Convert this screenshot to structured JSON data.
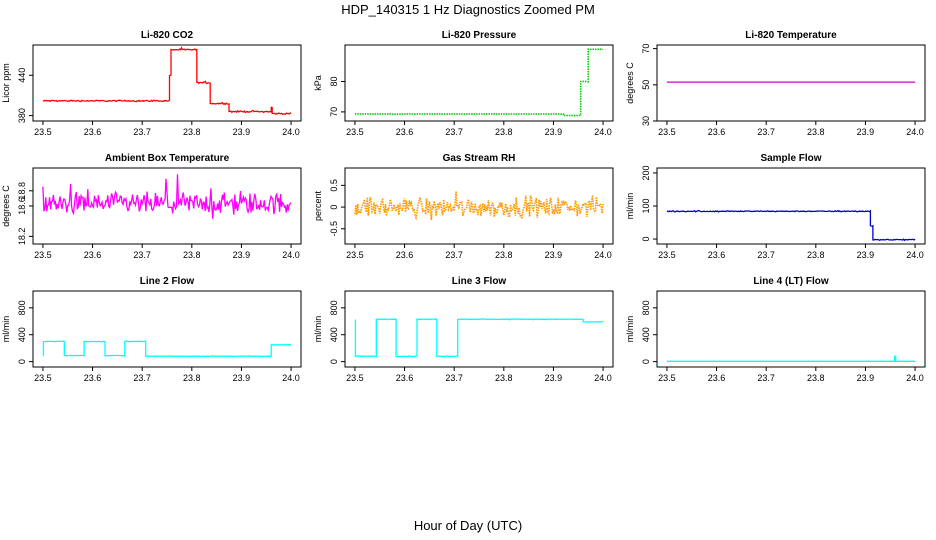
{
  "figure": {
    "title": "HDP_140315  1 Hz Diagnostics Zoomed PM",
    "xlabel": "Hour of Day (UTC)"
  },
  "chart_data": [
    {
      "type": "line",
      "title": "Li-820 CO2",
      "ylabel": "Licor ppm",
      "xlim": [
        23.48,
        24.02
      ],
      "ylim": [
        372,
        485
      ],
      "xticks": [
        "23.5",
        "23.6",
        "23.7",
        "23.8",
        "23.9",
        "24.0"
      ],
      "yticks": [
        "380",
        "440"
      ],
      "xtick_values": [
        23.5,
        23.6,
        23.7,
        23.8,
        23.9,
        24.0
      ],
      "ytick_values": [
        380,
        440
      ],
      "color": "#ff0000",
      "style": "line",
      "noise": 1.0,
      "series": [
        {
          "segments": [
            [
              23.5,
              23.755,
              402
            ],
            [
              23.755,
              23.758,
              440
            ],
            [
              23.758,
              23.81,
              478
            ],
            [
              23.81,
              23.837,
              429
            ],
            [
              23.837,
              23.875,
              398
            ],
            [
              23.875,
              23.96,
              386
            ],
            [
              23.96,
              23.962,
              392
            ],
            [
              23.962,
              24.0,
              383
            ]
          ]
        }
      ]
    },
    {
      "type": "line",
      "title": "Li-820 Pressure",
      "ylabel": "kPa",
      "xlim": [
        23.48,
        24.02
      ],
      "ylim": [
        67,
        92
      ],
      "xticks": [
        "23.5",
        "23.6",
        "23.7",
        "23.8",
        "23.9",
        "24.0"
      ],
      "yticks": [
        "70",
        "80"
      ],
      "xtick_values": [
        23.5,
        23.6,
        23.7,
        23.8,
        23.9,
        24.0
      ],
      "ytick_values": [
        70,
        80
      ],
      "color": "#00cc00",
      "style": "dotted",
      "noise": 0.05,
      "series": [
        {
          "segments": [
            [
              23.5,
              23.92,
              69.3
            ],
            [
              23.92,
              23.955,
              68.8
            ],
            [
              23.955,
              23.97,
              80
            ],
            [
              23.97,
              24.0,
              90.6
            ]
          ]
        }
      ]
    },
    {
      "type": "line",
      "title": "Li-820 Temperature",
      "ylabel": "degrees C",
      "xlim": [
        23.48,
        24.02
      ],
      "ylim": [
        30,
        72
      ],
      "xticks": [
        "23.5",
        "23.6",
        "23.7",
        "23.8",
        "23.9",
        "24.0"
      ],
      "yticks": [
        "30",
        "50",
        "70"
      ],
      "xtick_values": [
        23.5,
        23.6,
        23.7,
        23.8,
        23.9,
        24.0
      ],
      "ytick_values": [
        30,
        50,
        70
      ],
      "color": "#cc00cc",
      "style": "line",
      "noise": 0.0,
      "series": [
        {
          "segments": [
            [
              23.5,
              24.0,
              51.5
            ]
          ]
        }
      ]
    },
    {
      "type": "line",
      "title": "Ambient Box Temperature",
      "ylabel": "degrees C",
      "xlim": [
        23.48,
        24.02
      ],
      "ylim": [
        18.1,
        19.1
      ],
      "xticks": [
        "23.5",
        "23.6",
        "23.7",
        "23.8",
        "23.9",
        "24.0"
      ],
      "yticks": [
        "18.2",
        "18.6",
        "18.8"
      ],
      "xtick_values": [
        23.5,
        23.6,
        23.7,
        23.8,
        23.9,
        24.0
      ],
      "ytick_values": [
        18.2,
        18.6,
        18.8
      ],
      "color": "#ff00ff",
      "style": "line",
      "noise": 0.14,
      "series": [
        {
          "segments": [
            [
              23.5,
              24.0,
              18.63
            ]
          ]
        }
      ]
    },
    {
      "type": "line",
      "title": "Gas Stream RH",
      "ylabel": "percent",
      "xlim": [
        23.48,
        24.02
      ],
      "ylim": [
        -0.85,
        0.9
      ],
      "xticks": [
        "23.5",
        "23.6",
        "23.7",
        "23.8",
        "23.9",
        "24.0"
      ],
      "yticks": [
        "-0.5",
        "0",
        "0.5"
      ],
      "xtick_values": [
        23.5,
        23.6,
        23.7,
        23.8,
        23.9,
        24.0
      ],
      "ytick_values": [
        -0.5,
        0,
        0.5
      ],
      "color": "#ff9900",
      "style": "dotted",
      "noise": 0.22,
      "series": [
        {
          "segments": [
            [
              23.5,
              24.0,
              0.0
            ]
          ]
        }
      ]
    },
    {
      "type": "line",
      "title": "Sample Flow",
      "ylabel": "ml/min",
      "xlim": [
        23.48,
        24.02
      ],
      "ylim": [
        -15,
        215
      ],
      "xticks": [
        "23.5",
        "23.6",
        "23.7",
        "23.8",
        "23.9",
        "24.0"
      ],
      "yticks": [
        "0",
        "100",
        "200"
      ],
      "xtick_values": [
        23.5,
        23.6,
        23.7,
        23.8,
        23.9,
        24.0
      ],
      "ytick_values": [
        0,
        100,
        200
      ],
      "color": "#0000cc",
      "style": "line",
      "noise": 1.5,
      "series": [
        {
          "segments": [
            [
              23.5,
              23.91,
              84
            ],
            [
              23.91,
              23.915,
              40
            ],
            [
              23.915,
              24.0,
              -2
            ]
          ]
        }
      ]
    },
    {
      "type": "line",
      "title": "Line 2 Flow",
      "ylabel": "ml/min",
      "xlim": [
        23.48,
        24.02
      ],
      "ylim": [
        -80,
        1050
      ],
      "xticks": [
        "23.5",
        "23.6",
        "23.7",
        "23.8",
        "23.9",
        "24.0"
      ],
      "yticks": [
        "0",
        "400",
        "800"
      ],
      "xtick_values": [
        23.5,
        23.6,
        23.7,
        23.8,
        23.9,
        24.0
      ],
      "ytick_values": [
        0,
        400,
        800
      ],
      "color": "#00ffff",
      "style": "line",
      "noise": 4.0,
      "series": [
        {
          "segments": [
            [
              23.5,
              23.501,
              100
            ],
            [
              23.501,
              23.543,
              300
            ],
            [
              23.543,
              23.583,
              90
            ],
            [
              23.583,
              23.625,
              300
            ],
            [
              23.625,
              23.665,
              90
            ],
            [
              23.665,
              23.707,
              300
            ],
            [
              23.707,
              23.96,
              80
            ],
            [
              23.96,
              24.0,
              250
            ]
          ]
        }
      ]
    },
    {
      "type": "line",
      "title": "Line 3 Flow",
      "ylabel": "ml/min",
      "xlim": [
        23.48,
        24.02
      ],
      "ylim": [
        -80,
        1050
      ],
      "xticks": [
        "23.5",
        "23.6",
        "23.7",
        "23.8",
        "23.9",
        "24.0"
      ],
      "yticks": [
        "0",
        "400",
        "800"
      ],
      "xtick_values": [
        23.5,
        23.6,
        23.7,
        23.8,
        23.9,
        24.0
      ],
      "ytick_values": [
        0,
        400,
        800
      ],
      "color": "#00ffff",
      "style": "line",
      "noise": 5.0,
      "series": [
        {
          "segments": [
            [
              23.5,
              23.501,
              620
            ],
            [
              23.501,
              23.543,
              80
            ],
            [
              23.543,
              23.583,
              630
            ],
            [
              23.583,
              23.625,
              80
            ],
            [
              23.625,
              23.665,
              630
            ],
            [
              23.665,
              23.707,
              80
            ],
            [
              23.707,
              23.96,
              630
            ],
            [
              23.96,
              24.0,
              590
            ]
          ]
        }
      ]
    },
    {
      "type": "line",
      "title": "Line 4 (LT) Flow",
      "ylabel": "ml/min",
      "xlim": [
        23.48,
        24.02
      ],
      "ylim": [
        -80,
        1050
      ],
      "xticks": [
        "23.5",
        "23.6",
        "23.7",
        "23.8",
        "23.9",
        "24.0"
      ],
      "yticks": [
        "0",
        "400",
        "800"
      ],
      "xtick_values": [
        23.5,
        23.6,
        23.7,
        23.8,
        23.9,
        24.0
      ],
      "ytick_values": [
        0,
        400,
        800
      ],
      "color": "#00ffff",
      "style": "line",
      "noise": 0.0,
      "series": [
        {
          "segments": [
            [
              23.5,
              23.959,
              5
            ],
            [
              23.959,
              23.961,
              80
            ],
            [
              23.961,
              24.0,
              5
            ]
          ]
        }
      ]
    }
  ]
}
